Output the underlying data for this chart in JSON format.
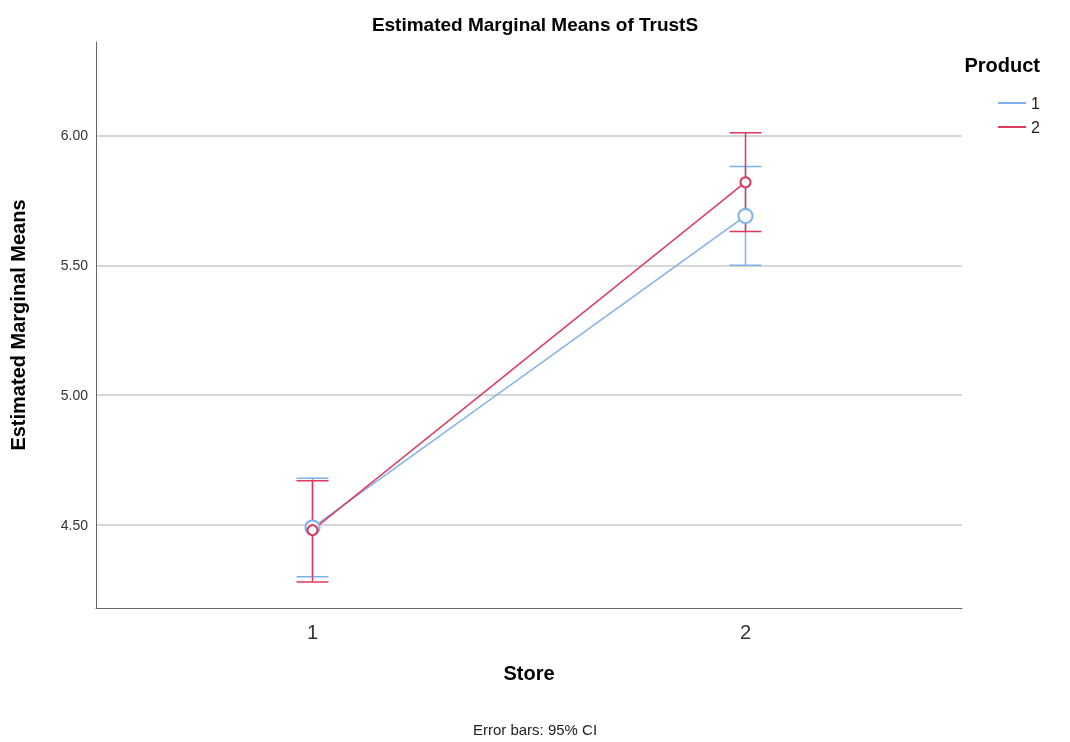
{
  "chart_data": {
    "type": "line",
    "title": "Estimated Marginal Means of TrustS",
    "xlabel": "Store",
    "ylabel": "Estimated Marginal Means",
    "legend_title": "Product",
    "annotations": [
      "Error bars: 95% CI"
    ],
    "categories": [
      "1",
      "2"
    ],
    "series": [
      {
        "name": "1",
        "color": "#7eb0ea",
        "values": [
          4.49,
          5.69
        ],
        "errors": [
          [
            4.3,
            4.68
          ],
          [
            5.5,
            5.88
          ]
        ]
      },
      {
        "name": "2",
        "color": "#dc3a5e",
        "values": [
          4.48,
          5.82
        ],
        "errors": [
          [
            4.28,
            4.67
          ],
          [
            5.63,
            6.01
          ]
        ]
      }
    ],
    "ylim": [
      4.18,
      6.36
    ],
    "yticks": [
      {
        "value": 4.5,
        "label": "4.50"
      },
      {
        "value": 5,
        "label": "5.00"
      },
      {
        "value": 5.5,
        "label": "5.50"
      },
      {
        "value": 6,
        "label": "6.00"
      }
    ],
    "grid": "y",
    "legend": "top right",
    "marker": "circle",
    "line_style": "solid"
  }
}
